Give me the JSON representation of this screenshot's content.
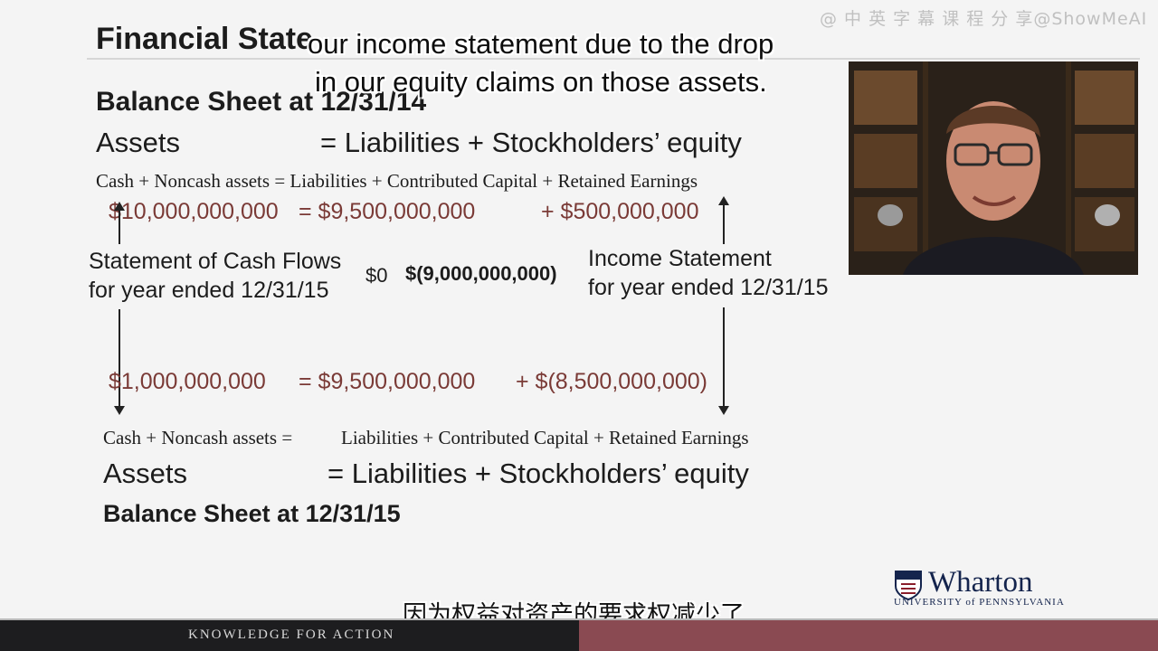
{
  "slide": {
    "title": "Financial State",
    "top_heading": "Balance Sheet at 12/31/14",
    "top_equation": "Assets                  = Liabilities + Stockholders’ equity",
    "top_detail": "Cash + Noncash assets = Liabilities + Contributed Capital + Retained Earnings",
    "top_numbers": {
      "assets": "$10,000,000,000",
      "liabilities": "= $9,500,000,000",
      "equity": "+ $500,000,000"
    },
    "cash_flow_statement": [
      "Statement of Cash Flows",
      "for year ended 12/31/15"
    ],
    "cash_flow_value": "$0",
    "income_value": "$(9,000,000,000)",
    "income_statement": [
      "Income Statement",
      "for year ended 12/31/15"
    ],
    "bottom_numbers": {
      "assets": "$1,000,000,000",
      "liabilities": "= $9,500,000,000",
      "equity": "+ $(8,500,000,000)"
    },
    "bottom_detail_assets": "Cash + Noncash assets =",
    "bottom_detail_rest": "Liabilities + Contributed Capital + Retained Earnings",
    "bottom_equation": "Assets                  = Liabilities + Stockholders’ equity",
    "bottom_heading": "Balance Sheet at 12/31/15"
  },
  "captions": {
    "english": [
      "our income statement due to the drop",
      "in our equity claims on those assets."
    ],
    "chinese": "因为权益对资产的要求权减少了"
  },
  "watermark": "@ 中 英 字 幕 课 程 分 享@ShowMeAI",
  "footer": {
    "tagline": "KNOWLEDGE FOR ACTION"
  },
  "logo": {
    "name": "Wharton",
    "subtitle": "UNIVERSITY of PENNSYLVANIA"
  },
  "colors": {
    "number_red": "#7a3a36",
    "footer_dark": "#1d1d1f",
    "footer_accent": "#8a4a52",
    "logo_navy": "#14244d"
  }
}
